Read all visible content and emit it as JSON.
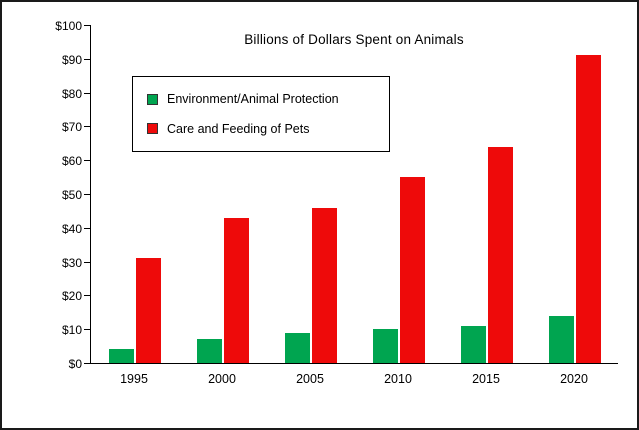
{
  "chart_data": {
    "type": "bar",
    "title": "Billions of Dollars Spent on Animals",
    "categories": [
      "1995",
      "2000",
      "2005",
      "2010",
      "2015",
      "2020"
    ],
    "series": [
      {
        "name": "Environment/Animal Protection",
        "color": "#00A550",
        "values": [
          4,
          7,
          9,
          10,
          11,
          14
        ]
      },
      {
        "name": "Care and Feeding of Pets",
        "color": "#EE0A0A",
        "values": [
          31,
          43,
          46,
          55,
          64,
          91
        ]
      }
    ],
    "xlabel": "",
    "ylabel": "",
    "ylim": [
      0,
      100
    ],
    "ytick_step": 10,
    "ytick_labels": [
      "$0",
      "$10",
      "$20",
      "$30",
      "$40",
      "$50",
      "$60",
      "$70",
      "$80",
      "$90",
      "$100"
    ],
    "legend_position": "upper-left",
    "grid": false
  }
}
